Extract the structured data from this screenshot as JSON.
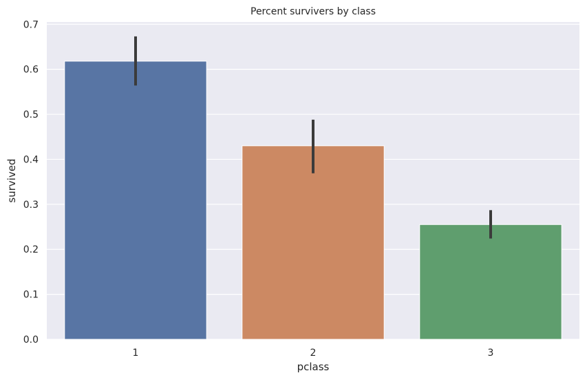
{
  "chart_data": {
    "type": "bar",
    "title": "Percent survivers by class",
    "xlabel": "pclass",
    "ylabel": "survived",
    "categories": [
      "1",
      "2",
      "3"
    ],
    "values": [
      0.618,
      0.43,
      0.255
    ],
    "error_bars": [
      {
        "low": 0.564,
        "high": 0.673
      },
      {
        "low": 0.369,
        "high": 0.488
      },
      {
        "low": 0.224,
        "high": 0.287
      }
    ],
    "colors": [
      "#5875a4",
      "#cc8963",
      "#5f9e6e"
    ],
    "error_color": "#3b3b3b",
    "background_color": "#eaeaf2",
    "grid_color": "#ffffff",
    "ylim": [
      0,
      0.705
    ],
    "yticks": [
      0.0,
      0.1,
      0.2,
      0.3,
      0.4,
      0.5,
      0.6,
      0.7
    ],
    "ytick_labels": [
      "0.0",
      "0.1",
      "0.2",
      "0.3",
      "0.4",
      "0.5",
      "0.6",
      "0.7"
    ],
    "grid": true,
    "legend": "none"
  }
}
